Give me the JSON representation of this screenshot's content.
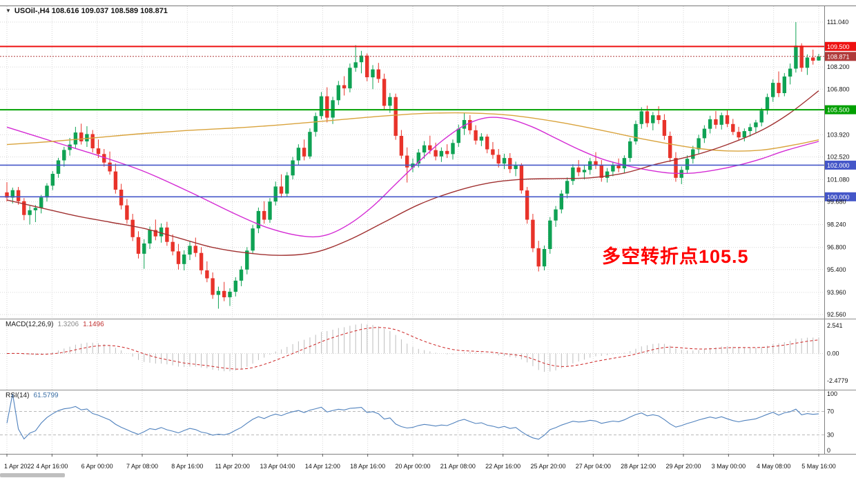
{
  "header": {
    "collapse_icon": "▼",
    "symbol_title": "USOil-,H4 108.616 109.037 108.589 108.871"
  },
  "chart_data": {
    "type": "candlestick",
    "symbol": "USOil-",
    "timeframe": "H4",
    "ylim": [
      92.2,
      112.0
    ],
    "price_decimals": 3,
    "price_ticks": [
      111.04,
      108.2,
      106.8,
      103.92,
      102.52,
      101.08,
      99.68,
      98.24,
      96.8,
      95.4,
      93.96,
      92.56
    ],
    "time_labels": [
      "1 Apr 2022",
      "4 Apr 16:00",
      "6 Apr 00:00",
      "7 Apr 08:00",
      "8 Apr 16:00",
      "11 Apr 20:00",
      "13 Apr 04:00",
      "14 Apr 12:00",
      "18 Apr 16:00",
      "20 Apr 00:00",
      "21 Apr 08:00",
      "22 Apr 16:00",
      "25 Apr 20:00",
      "27 Apr 04:00",
      "28 Apr 12:00",
      "29 Apr 20:00",
      "3 May 00:00",
      "4 May 08:00",
      "5 May 16:00"
    ],
    "colors": {
      "up": "#0fa254",
      "down": "#e8332a",
      "grid": "#d6d6d6",
      "axis_line": "#808080",
      "separator": "#8c8c8c",
      "text": "#111111",
      "macd_hist": "#bdbdbd",
      "macd_signal": "#cc2222",
      "rsi_line": "#4f81bd",
      "rsi_level": "#b8b8b8"
    },
    "levels": [
      {
        "price": 109.5,
        "label": "109.500",
        "color": "#ee1111",
        "width": 2
      },
      {
        "price": 105.5,
        "label": "105.500",
        "color": "#00a000",
        "width": 2
      },
      {
        "price": 102.0,
        "label": "102.000",
        "color": "#4456c8",
        "width": 1.6
      },
      {
        "price": 100.0,
        "label": "100.000",
        "color": "#4456c8",
        "width": 1.6
      }
    ],
    "bid": {
      "price": 108.871,
      "label": "108.871",
      "color": "#b03a3a"
    },
    "annotation": {
      "text": "多空转折点105.5",
      "color": "#ff0000"
    },
    "indicators": {
      "macd": {
        "name": "MACD(12,26,9)",
        "value_hist": "1.3206",
        "value_signal": "1.1496",
        "params": [
          12,
          26,
          9
        ],
        "axis_ticks": [
          "2.541",
          "0.00",
          "-2.4779"
        ],
        "axis_values": [
          2.541,
          0,
          -2.4779
        ]
      },
      "rsi": {
        "name": "RSI(14)",
        "value": "61.5799",
        "period": 14,
        "levels": [
          70,
          30
        ],
        "axis_ticks": [
          "100",
          "70",
          "30",
          "0"
        ],
        "axis_values": [
          100,
          70,
          30,
          0
        ]
      }
    },
    "ma_lines": [
      {
        "name": "ma-magenta",
        "color": "#d42ad4",
        "points": [
          [
            0,
            104.4
          ],
          [
            8,
            103.5
          ],
          [
            16,
            102.6
          ],
          [
            24,
            101.6
          ],
          [
            32,
            100.3
          ],
          [
            40,
            98.9
          ],
          [
            46,
            98.0
          ],
          [
            52,
            97.5
          ],
          [
            56,
            97.6
          ],
          [
            60,
            98.3
          ],
          [
            64,
            99.4
          ],
          [
            68,
            100.8
          ],
          [
            72,
            102.2
          ],
          [
            76,
            103.5
          ],
          [
            80,
            104.5
          ],
          [
            84,
            105.0
          ],
          [
            88,
            104.9
          ],
          [
            92,
            104.4
          ],
          [
            96,
            103.7
          ],
          [
            100,
            103.0
          ],
          [
            104,
            102.4
          ],
          [
            108,
            102.0
          ],
          [
            112,
            101.7
          ],
          [
            116,
            101.5
          ],
          [
            120,
            101.5
          ],
          [
            124,
            101.7
          ],
          [
            128,
            102.0
          ],
          [
            132,
            102.4
          ],
          [
            136,
            102.9
          ],
          [
            142,
            103.5
          ]
        ]
      },
      {
        "name": "ma-orange",
        "color": "#d9a33c",
        "points": [
          [
            0,
            103.3
          ],
          [
            8,
            103.5
          ],
          [
            16,
            103.75
          ],
          [
            24,
            104.0
          ],
          [
            32,
            104.2
          ],
          [
            40,
            104.35
          ],
          [
            48,
            104.55
          ],
          [
            56,
            104.8
          ],
          [
            64,
            105.05
          ],
          [
            72,
            105.25
          ],
          [
            80,
            105.3
          ],
          [
            88,
            105.15
          ],
          [
            96,
            104.75
          ],
          [
            104,
            104.2
          ],
          [
            112,
            103.6
          ],
          [
            120,
            103.1
          ],
          [
            126,
            102.9
          ],
          [
            132,
            102.95
          ],
          [
            138,
            103.3
          ],
          [
            142,
            103.6
          ]
        ]
      },
      {
        "name": "ma-darkred",
        "color": "#a03030",
        "points": [
          [
            0,
            99.8
          ],
          [
            6,
            99.3
          ],
          [
            12,
            98.8
          ],
          [
            18,
            98.4
          ],
          [
            24,
            98.0
          ],
          [
            30,
            97.4
          ],
          [
            36,
            96.8
          ],
          [
            42,
            96.45
          ],
          [
            48,
            96.3
          ],
          [
            54,
            96.5
          ],
          [
            60,
            97.3
          ],
          [
            66,
            98.4
          ],
          [
            72,
            99.5
          ],
          [
            78,
            100.3
          ],
          [
            84,
            100.85
          ],
          [
            90,
            101.1
          ],
          [
            96,
            101.15
          ],
          [
            102,
            101.2
          ],
          [
            108,
            101.5
          ],
          [
            114,
            102.1
          ],
          [
            120,
            102.6
          ],
          [
            126,
            103.3
          ],
          [
            132,
            104.2
          ],
          [
            137,
            105.3
          ],
          [
            142,
            106.7
          ]
        ]
      }
    ],
    "ohlc": [
      [
        100.28,
        100.92,
        99.7,
        99.95
      ],
      [
        99.95,
        100.58,
        99.58,
        100.42
      ],
      [
        100.42,
        100.62,
        99.5,
        99.72
      ],
      [
        99.72,
        99.92,
        98.52,
        98.85
      ],
      [
        98.85,
        99.42,
        98.25,
        99.15
      ],
      [
        99.15,
        99.48,
        98.4,
        99.3
      ],
      [
        99.3,
        100.12,
        98.95,
        99.96
      ],
      [
        99.96,
        100.86,
        99.7,
        100.7
      ],
      [
        100.7,
        101.62,
        100.42,
        101.45
      ],
      [
        101.45,
        102.46,
        101.2,
        102.3
      ],
      [
        102.3,
        103.16,
        101.9,
        102.96
      ],
      [
        102.96,
        103.72,
        102.6,
        103.3
      ],
      [
        103.3,
        104.42,
        103.05,
        104.06
      ],
      [
        104.06,
        104.62,
        103.3,
        103.5
      ],
      [
        103.5,
        104.46,
        103.15,
        103.96
      ],
      [
        103.96,
        104.22,
        102.8,
        103.06
      ],
      [
        103.06,
        103.62,
        102.45,
        102.7
      ],
      [
        102.7,
        103.02,
        101.9,
        102.16
      ],
      [
        102.16,
        102.86,
        101.4,
        101.6
      ],
      [
        101.6,
        102.1,
        100.2,
        100.45
      ],
      [
        100.45,
        100.82,
        99.2,
        99.46
      ],
      [
        99.46,
        99.86,
        98.3,
        98.55
      ],
      [
        98.55,
        98.92,
        97.2,
        97.45
      ],
      [
        97.45,
        97.82,
        96.1,
        96.4
      ],
      [
        96.4,
        97.32,
        95.45,
        97.05
      ],
      [
        97.05,
        98.12,
        96.7,
        97.9
      ],
      [
        97.9,
        98.56,
        97.25,
        97.5
      ],
      [
        97.5,
        98.32,
        97.1,
        98.06
      ],
      [
        98.06,
        98.42,
        96.9,
        97.15
      ],
      [
        97.15,
        97.62,
        96.3,
        96.55
      ],
      [
        96.55,
        97.02,
        95.4,
        95.75
      ],
      [
        95.75,
        96.62,
        95.35,
        96.35
      ],
      [
        96.35,
        97.16,
        96.0,
        96.9
      ],
      [
        96.9,
        97.42,
        96.2,
        96.45
      ],
      [
        96.45,
        96.82,
        95.1,
        95.35
      ],
      [
        95.35,
        95.92,
        94.6,
        94.85
      ],
      [
        94.85,
        95.22,
        93.55,
        93.8
      ],
      [
        93.8,
        94.32,
        92.93,
        94.05
      ],
      [
        94.05,
        94.62,
        93.4,
        93.65
      ],
      [
        93.65,
        94.22,
        93.1,
        94.0
      ],
      [
        94.0,
        94.92,
        93.7,
        94.7
      ],
      [
        94.7,
        95.62,
        94.35,
        95.4
      ],
      [
        95.4,
        96.82,
        95.1,
        96.6
      ],
      [
        96.6,
        98.22,
        96.4,
        98.0
      ],
      [
        98.0,
        99.32,
        97.7,
        99.1
      ],
      [
        99.1,
        99.72,
        98.3,
        98.55
      ],
      [
        98.55,
        99.92,
        98.35,
        99.7
      ],
      [
        99.7,
        100.96,
        99.45,
        100.65
      ],
      [
        100.65,
        101.42,
        99.95,
        100.2
      ],
      [
        100.2,
        101.56,
        100.0,
        101.35
      ],
      [
        101.35,
        102.52,
        101.1,
        102.3
      ],
      [
        102.3,
        103.32,
        102.0,
        103.1
      ],
      [
        103.1,
        103.62,
        102.3,
        102.55
      ],
      [
        102.55,
        104.32,
        102.4,
        104.1
      ],
      [
        104.1,
        105.32,
        103.8,
        105.1
      ],
      [
        105.1,
        106.62,
        104.9,
        106.35
      ],
      [
        106.35,
        106.92,
        104.7,
        105.0
      ],
      [
        105.0,
        106.32,
        104.6,
        106.1
      ],
      [
        106.1,
        107.32,
        105.8,
        107.05
      ],
      [
        107.05,
        107.62,
        106.4,
        106.85
      ],
      [
        106.85,
        108.42,
        106.6,
        108.15
      ],
      [
        108.15,
        109.58,
        107.9,
        108.5
      ],
      [
        108.5,
        109.22,
        107.8,
        108.92
      ],
      [
        108.92,
        109.06,
        107.3,
        107.55
      ],
      [
        107.55,
        108.32,
        106.8,
        108.05
      ],
      [
        108.05,
        108.46,
        107.2,
        107.45
      ],
      [
        107.45,
        107.78,
        105.5,
        105.75
      ],
      [
        105.75,
        106.56,
        105.3,
        106.3
      ],
      [
        106.3,
        106.52,
        103.6,
        103.85
      ],
      [
        103.85,
        104.22,
        102.4,
        102.6
      ],
      [
        102.6,
        103.12,
        100.9,
        101.85
      ],
      [
        101.85,
        102.42,
        101.55,
        102.1
      ],
      [
        102.1,
        103.02,
        101.85,
        102.8
      ],
      [
        102.8,
        103.52,
        102.4,
        103.25
      ],
      [
        103.25,
        103.86,
        102.7,
        102.95
      ],
      [
        102.95,
        103.42,
        102.3,
        102.55
      ],
      [
        102.55,
        103.12,
        102.2,
        102.9
      ],
      [
        102.9,
        103.32,
        102.45,
        102.7
      ],
      [
        102.7,
        103.62,
        102.35,
        103.4
      ],
      [
        103.4,
        104.56,
        103.15,
        104.3
      ],
      [
        104.3,
        105.3,
        103.9,
        104.85
      ],
      [
        104.85,
        105.16,
        103.95,
        104.2
      ],
      [
        104.2,
        104.52,
        103.3,
        103.55
      ],
      [
        103.55,
        104.02,
        103.2,
        103.8
      ],
      [
        103.8,
        103.96,
        102.75,
        103.0
      ],
      [
        103.0,
        103.46,
        102.4,
        102.65
      ],
      [
        102.65,
        103.02,
        101.85,
        102.1
      ],
      [
        102.1,
        102.72,
        101.75,
        102.45
      ],
      [
        102.45,
        102.76,
        101.5,
        101.75
      ],
      [
        101.75,
        102.22,
        101.3,
        102.0
      ],
      [
        102.0,
        102.12,
        100.2,
        100.4
      ],
      [
        100.4,
        100.62,
        98.3,
        98.55
      ],
      [
        98.55,
        98.92,
        96.5,
        96.75
      ],
      [
        96.75,
        97.22,
        95.28,
        95.6
      ],
      [
        95.6,
        96.92,
        95.35,
        96.7
      ],
      [
        96.7,
        98.72,
        96.4,
        98.5
      ],
      [
        98.5,
        99.42,
        98.1,
        99.2
      ],
      [
        99.2,
        100.42,
        98.95,
        100.2
      ],
      [
        100.2,
        101.22,
        99.9,
        101.0
      ],
      [
        101.0,
        102.06,
        100.75,
        101.85
      ],
      [
        101.85,
        102.32,
        101.3,
        101.55
      ],
      [
        101.55,
        102.02,
        101.1,
        101.7
      ],
      [
        101.7,
        102.46,
        101.4,
        102.25
      ],
      [
        102.25,
        102.82,
        101.75,
        102.0
      ],
      [
        102.0,
        102.32,
        100.95,
        101.2
      ],
      [
        101.2,
        101.82,
        100.9,
        101.6
      ],
      [
        101.6,
        102.22,
        101.3,
        102.0
      ],
      [
        102.0,
        102.42,
        101.55,
        101.8
      ],
      [
        101.8,
        102.62,
        101.5,
        102.45
      ],
      [
        102.45,
        103.72,
        102.2,
        103.5
      ],
      [
        103.5,
        104.82,
        103.3,
        104.6
      ],
      [
        104.6,
        105.66,
        104.3,
        105.4
      ],
      [
        105.4,
        105.76,
        104.4,
        104.65
      ],
      [
        104.65,
        105.36,
        104.2,
        105.15
      ],
      [
        105.15,
        105.72,
        104.6,
        104.85
      ],
      [
        104.85,
        105.22,
        103.6,
        103.85
      ],
      [
        103.85,
        104.12,
        102.2,
        102.45
      ],
      [
        102.45,
        102.82,
        100.95,
        101.2
      ],
      [
        101.2,
        101.92,
        100.8,
        101.7
      ],
      [
        101.7,
        102.62,
        101.45,
        102.4
      ],
      [
        102.4,
        103.22,
        102.1,
        103.0
      ],
      [
        103.0,
        103.92,
        102.7,
        103.7
      ],
      [
        103.7,
        104.52,
        103.4,
        104.3
      ],
      [
        104.3,
        105.12,
        104.0,
        104.9
      ],
      [
        104.9,
        105.42,
        104.3,
        104.55
      ],
      [
        104.55,
        105.32,
        104.25,
        105.15
      ],
      [
        105.15,
        105.46,
        104.4,
        104.6
      ],
      [
        104.6,
        104.92,
        103.9,
        104.1
      ],
      [
        104.1,
        104.42,
        103.55,
        103.75
      ],
      [
        103.75,
        104.32,
        103.5,
        104.15
      ],
      [
        104.15,
        104.62,
        103.8,
        104.4
      ],
      [
        104.4,
        104.86,
        104.05,
        104.7
      ],
      [
        104.7,
        105.62,
        104.45,
        105.45
      ],
      [
        105.45,
        106.52,
        105.2,
        106.3
      ],
      [
        106.3,
        107.42,
        106.0,
        107.2
      ],
      [
        107.2,
        107.92,
        106.3,
        106.55
      ],
      [
        106.55,
        107.82,
        106.35,
        107.6
      ],
      [
        107.6,
        108.42,
        107.1,
        108.1
      ],
      [
        108.1,
        111.04,
        107.85,
        109.55
      ],
      [
        109.55,
        109.7,
        107.9,
        108.15
      ],
      [
        108.15,
        109.0,
        107.7,
        108.8
      ],
      [
        108.8,
        109.3,
        108.35,
        108.6
      ],
      [
        108.616,
        109.037,
        108.589,
        108.871
      ]
    ]
  }
}
